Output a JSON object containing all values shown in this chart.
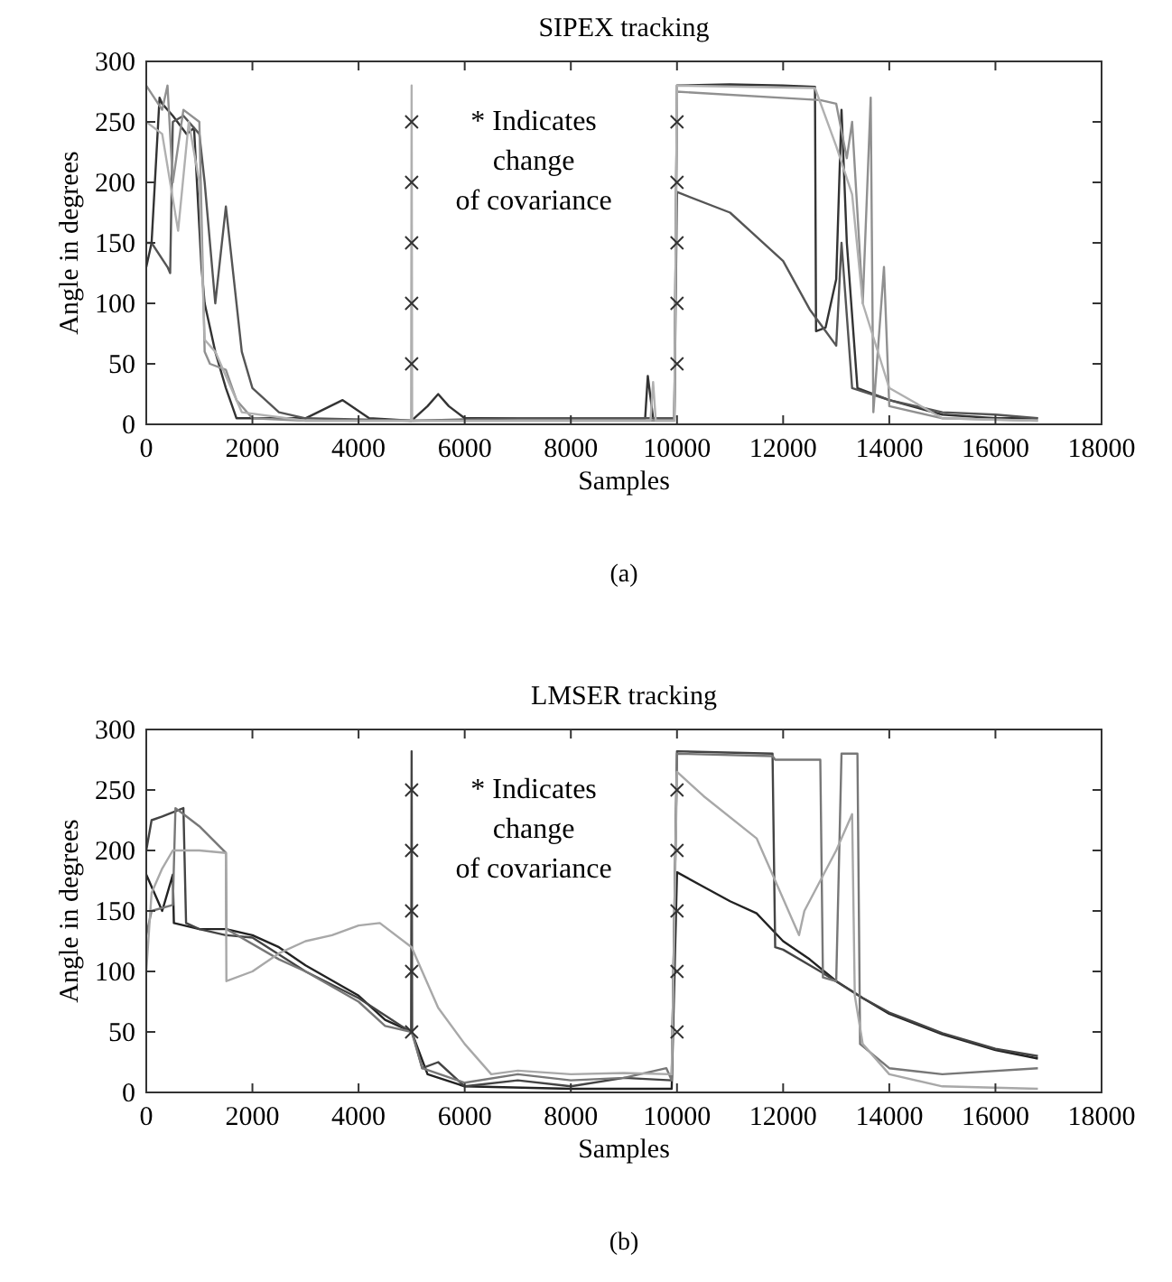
{
  "chart_data": [
    {
      "type": "line",
      "title": "SIPEX tracking",
      "xlabel": "Samples",
      "ylabel": "Angle in degrees",
      "xlim": [
        0,
        18000
      ],
      "ylim": [
        0,
        300
      ],
      "xticks": [
        0,
        2000,
        4000,
        6000,
        8000,
        10000,
        12000,
        14000,
        16000,
        18000
      ],
      "yticks": [
        0,
        50,
        100,
        150,
        200,
        250,
        300
      ],
      "annotations": [
        "* Indicates\nchange\nof covariance",
        "(a)"
      ],
      "series": [
        {
          "color": "#333333",
          "x": [
            0,
            100,
            250,
            300,
            500,
            760,
            900,
            1040,
            1100,
            1300,
            1500,
            1700,
            2000,
            3000,
            3700,
            4200,
            5000,
            5300,
            5500,
            5700,
            6000,
            7000,
            8000,
            9000,
            9400,
            9450,
            9550,
            9950,
            10000,
            11000,
            12000,
            12600,
            12620,
            12800,
            13000,
            13100,
            13200,
            13400,
            14000,
            15000,
            16000,
            16800
          ],
          "values": [
            130,
            150,
            270,
            265,
            255,
            240,
            245,
            130,
            100,
            60,
            30,
            5,
            5,
            5,
            20,
            5,
            3,
            15,
            25,
            15,
            5,
            5,
            5,
            5,
            5,
            40,
            5,
            5,
            280,
            281,
            280,
            279,
            77,
            80,
            120,
            260,
            150,
            30,
            20,
            8,
            5,
            5
          ]
        },
        {
          "color": "#555555",
          "x": [
            0,
            100,
            400,
            450,
            500,
            700,
            1000,
            1100,
            1300,
            1500,
            1800,
            2000,
            2500,
            3000,
            5000,
            7000,
            9000,
            9950,
            10000,
            11000,
            12000,
            12500,
            12800,
            13000,
            13100,
            13300,
            14000,
            15000,
            16000,
            16800
          ],
          "values": [
            150,
            150,
            130,
            125,
            250,
            255,
            240,
            200,
            100,
            180,
            60,
            30,
            10,
            5,
            3,
            5,
            5,
            5,
            192,
            175,
            135,
            95,
            77,
            65,
            150,
            30,
            20,
            10,
            8,
            5
          ]
        },
        {
          "color": "#909090",
          "x": [
            0,
            300,
            400,
            500,
            700,
            1000,
            1100,
            1200,
            1500,
            1700,
            2000,
            3000,
            5000,
            7000,
            9000,
            9950,
            10000,
            12700,
            13000,
            13200,
            13300,
            13500,
            13650,
            13700,
            13900,
            14000,
            15000,
            16800
          ],
          "values": [
            280,
            260,
            280,
            200,
            260,
            250,
            60,
            50,
            45,
            20,
            5,
            3,
            3,
            3,
            3,
            3,
            275,
            268,
            265,
            220,
            250,
            100,
            270,
            10,
            130,
            15,
            5,
            3
          ]
        },
        {
          "color": "#b0b0b0",
          "x": [
            0,
            300,
            600,
            800,
            1000,
            1100,
            1300,
            1500,
            1800,
            3000,
            4990,
            5000,
            5010,
            7000,
            9500,
            9550,
            9600,
            9950,
            10000,
            12600,
            13000,
            13300,
            13500,
            14000,
            15000,
            16800
          ],
          "values": [
            250,
            240,
            160,
            250,
            200,
            70,
            60,
            40,
            10,
            3,
            3,
            280,
            3,
            3,
            3,
            35,
            3,
            3,
            280,
            278,
            230,
            190,
            100,
            30,
            5,
            3
          ]
        },
        {
          "type": "scatter",
          "marker": "cross",
          "color": "#333333",
          "x": [
            5000,
            5000,
            5000,
            5000,
            5000,
            10000,
            10000,
            10000,
            10000,
            10000
          ],
          "values": [
            50,
            100,
            150,
            200,
            250,
            50,
            100,
            150,
            200,
            250
          ]
        }
      ]
    },
    {
      "type": "line",
      "title": "LMSER tracking",
      "xlabel": "Samples",
      "ylabel": "Angle in degrees",
      "xlim": [
        0,
        18000
      ],
      "ylim": [
        0,
        300
      ],
      "xticks": [
        0,
        2000,
        4000,
        6000,
        8000,
        10000,
        12000,
        14000,
        16000,
        18000
      ],
      "yticks": [
        0,
        50,
        100,
        150,
        200,
        250,
        300
      ],
      "annotations": [
        "* Indicates\nchange\nof covariance",
        "(b)"
      ],
      "series": [
        {
          "color": "#222222",
          "x": [
            0,
            200,
            300,
            500,
            520,
            1000,
            1500,
            2000,
            2500,
            3000,
            4000,
            4500,
            5000,
            5300,
            6000,
            8000,
            9900,
            10000,
            10500,
            11000,
            11500,
            12000,
            12500,
            13000,
            13500,
            14000,
            15000,
            16000,
            16800
          ],
          "values": [
            180,
            160,
            150,
            180,
            140,
            135,
            135,
            130,
            120,
            105,
            80,
            60,
            50,
            15,
            5,
            3,
            3,
            182,
            170,
            158,
            148,
            125,
            110,
            92,
            78,
            65,
            48,
            35,
            28
          ]
        },
        {
          "color": "#444444",
          "x": [
            0,
            100,
            300,
            700,
            750,
            1000,
            1500,
            2000,
            3000,
            4000,
            4800,
            4990,
            5000,
            5010,
            5200,
            5500,
            6000,
            7000,
            8000,
            9000,
            9900,
            10000,
            11800,
            11850,
            12000,
            12700,
            13500,
            14000,
            15000,
            16000,
            16800
          ],
          "values": [
            200,
            225,
            228,
            235,
            140,
            135,
            130,
            128,
            100,
            78,
            55,
            50,
            282,
            50,
            20,
            25,
            5,
            10,
            5,
            12,
            10,
            282,
            280,
            120,
            118,
            100,
            78,
            66,
            49,
            36,
            30
          ]
        },
        {
          "color": "#777777",
          "x": [
            0,
            100,
            500,
            550,
            700,
            1000,
            1500,
            1510,
            2500,
            3000,
            4000,
            4500,
            5000,
            5200,
            6000,
            7000,
            8000,
            9000,
            9800,
            9900,
            10000,
            11800,
            11850,
            12700,
            12750,
            13000,
            13100,
            13400,
            13450,
            14000,
            15000,
            16800
          ],
          "values": [
            130,
            150,
            155,
            235,
            230,
            220,
            198,
            135,
            110,
            100,
            75,
            55,
            50,
            20,
            8,
            15,
            10,
            12,
            20,
            10,
            280,
            278,
            275,
            275,
            95,
            92,
            280,
            280,
            40,
            20,
            15,
            20
          ]
        },
        {
          "color": "#a8a8a8",
          "x": [
            0,
            100,
            300,
            500,
            1000,
            1500,
            1510,
            2000,
            2500,
            3000,
            3500,
            4000,
            4400,
            5000,
            5500,
            6000,
            6500,
            7000,
            8000,
            9000,
            9900,
            10000,
            10500,
            11500,
            12000,
            12300,
            12400,
            13000,
            13300,
            13350,
            13500,
            14000,
            15000,
            16800
          ],
          "values": [
            100,
            165,
            185,
            200,
            200,
            198,
            92,
            100,
            115,
            125,
            130,
            138,
            140,
            120,
            70,
            40,
            15,
            18,
            15,
            16,
            15,
            265,
            245,
            210,
            160,
            130,
            150,
            200,
            230,
            80,
            40,
            15,
            5,
            3
          ]
        },
        {
          "type": "scatter",
          "marker": "cross",
          "color": "#333333",
          "x": [
            5000,
            5000,
            5000,
            5000,
            5000,
            10000,
            10000,
            10000,
            10000,
            10000
          ],
          "values": [
            50,
            100,
            150,
            200,
            250,
            50,
            100,
            150,
            200,
            250
          ]
        }
      ]
    }
  ]
}
